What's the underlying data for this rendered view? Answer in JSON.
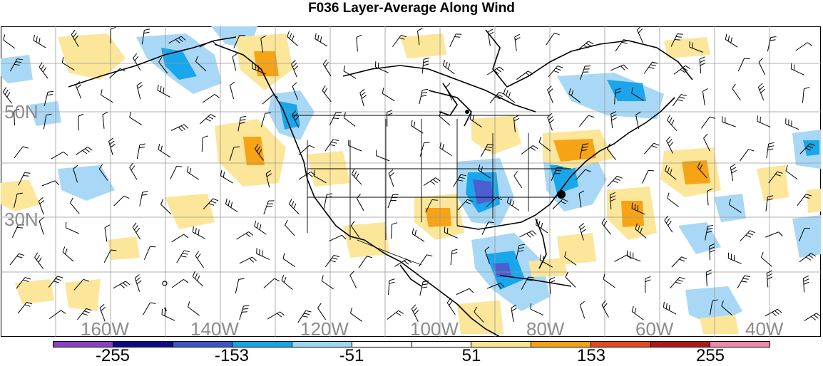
{
  "title": "F036 Layer-Average Along Wind",
  "map": {
    "lat_labels": [
      "50N",
      "30N"
    ],
    "lon_labels": [
      "160W",
      "140W",
      "120W",
      "100W",
      "80W",
      "60W",
      "40W"
    ]
  },
  "colorbar": {
    "colors": [
      "#8a3fc6",
      "#0a0a8c",
      "#3a55c8",
      "#12a5e8",
      "#9dd6f2",
      "#ffffff",
      "#ffffff",
      "#fae38a",
      "#f5a10f",
      "#e5481a",
      "#b01818",
      "#f088aa"
    ],
    "labels": [
      "-255",
      "-153",
      "-51",
      "51",
      "153",
      "255"
    ]
  },
  "colors": {
    "negative_light": "#a8d8f5",
    "negative_mid": "#1aa6ea",
    "negative_strong": "#4a5fd0",
    "positive_light": "#fbe69a",
    "positive_mid": "#f6a315",
    "grid": "#999999"
  }
}
